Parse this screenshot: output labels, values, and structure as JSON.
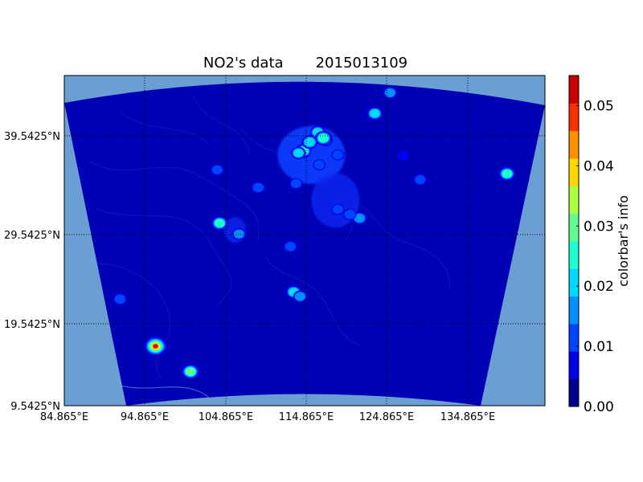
{
  "chart_data": {
    "type": "heatmap",
    "title_main": "NO2's data",
    "title_date": "2015013109",
    "colorbar_label": "colorbar's info",
    "x_tick_labels": [
      "84.865°E",
      "94.865°E",
      "104.865°E",
      "114.865°E",
      "124.865°E",
      "134.865°E"
    ],
    "x_tick_values": [
      84.865,
      94.865,
      104.865,
      114.865,
      124.865,
      134.865
    ],
    "y_tick_labels": [
      "9.5425°N",
      "19.5425°N",
      "29.5425°N",
      "39.5425°N"
    ],
    "y_tick_values": [
      9.5425,
      19.5425,
      29.5425,
      39.5425
    ],
    "xlim": [
      84.865,
      144.8
    ],
    "ylim": [
      9.5425,
      45.9
    ],
    "grid": "dotted",
    "colorbar": {
      "ticks": [
        "0.00",
        "0.01",
        "0.02",
        "0.03",
        "0.04",
        "0.05"
      ],
      "tick_values": [
        0.0,
        0.01,
        0.02,
        0.03,
        0.04,
        0.05
      ],
      "range": [
        0.0,
        0.055
      ],
      "colors": [
        "#00008f",
        "#0000ea",
        "#0044ff",
        "#0090ff",
        "#00d8ff",
        "#20ffd0",
        "#60ff90",
        "#b0ff40",
        "#ffd800",
        "#ff9000",
        "#ff3000",
        "#c80000"
      ]
    },
    "map_background": "#6b9fd3",
    "field_background": "#0000b4",
    "hotspots": [
      {
        "lon": 116.3,
        "lat": 39.9,
        "value": 0.022
      },
      {
        "lon": 117.3,
        "lat": 39.1,
        "value": 0.018
      },
      {
        "lon": 114.5,
        "lat": 38.0,
        "value": 0.026
      },
      {
        "lon": 113.9,
        "lat": 37.8,
        "value": 0.02
      },
      {
        "lon": 116.5,
        "lat": 36.6,
        "value": 0.012
      },
      {
        "lon": 118.8,
        "lat": 37.6,
        "value": 0.012
      },
      {
        "lon": 121.5,
        "lat": 31.2,
        "value": 0.018
      },
      {
        "lon": 120.3,
        "lat": 31.6,
        "value": 0.014
      },
      {
        "lon": 118.8,
        "lat": 32.1,
        "value": 0.012
      },
      {
        "lon": 113.3,
        "lat": 23.1,
        "value": 0.022
      },
      {
        "lon": 114.1,
        "lat": 22.6,
        "value": 0.016
      },
      {
        "lon": 123.4,
        "lat": 41.8,
        "value": 0.022
      },
      {
        "lon": 125.3,
        "lat": 43.9,
        "value": 0.016
      },
      {
        "lon": 126.6,
        "lat": 45.8,
        "value": 0.014
      },
      {
        "lon": 139.7,
        "lat": 35.7,
        "value": 0.026
      },
      {
        "lon": 129.0,
        "lat": 35.1,
        "value": 0.012
      },
      {
        "lon": 126.9,
        "lat": 37.5,
        "value": 0.01
      },
      {
        "lon": 104.1,
        "lat": 30.7,
        "value": 0.026
      },
      {
        "lon": 106.5,
        "lat": 29.6,
        "value": 0.016
      },
      {
        "lon": 108.9,
        "lat": 34.3,
        "value": 0.014
      },
      {
        "lon": 103.8,
        "lat": 36.1,
        "value": 0.012
      },
      {
        "lon": 100.5,
        "lat": 13.7,
        "value": 0.03
      },
      {
        "lon": 96.2,
        "lat": 16.8,
        "value": 0.052
      },
      {
        "lon": 91.8,
        "lat": 22.3,
        "value": 0.014
      },
      {
        "lon": 88.4,
        "lat": 22.6,
        "value": 0.012
      },
      {
        "lon": 117.0,
        "lat": 39.3,
        "value": 0.028
      },
      {
        "lon": 115.3,
        "lat": 38.9,
        "value": 0.024
      },
      {
        "lon": 113.6,
        "lat": 34.7,
        "value": 0.012
      },
      {
        "lon": 112.9,
        "lat": 28.2,
        "value": 0.014
      }
    ]
  }
}
